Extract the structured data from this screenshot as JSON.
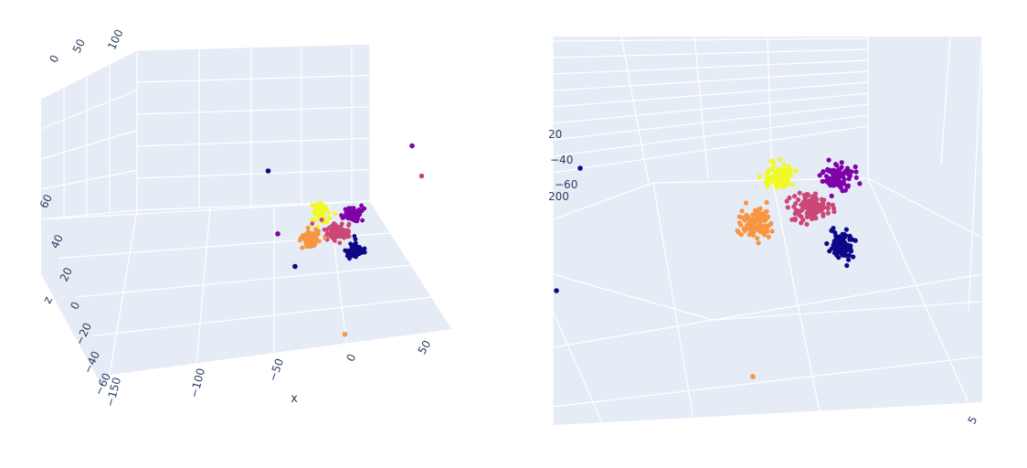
{
  "chart_data": [
    {
      "type": "scatter",
      "panel": "left",
      "axis_titles": {
        "x": "x",
        "z": "z"
      },
      "x_ticks": [
        "−150",
        "−100",
        "−50",
        "0",
        "50"
      ],
      "z_ticks": [
        "−60",
        "−40",
        "−20",
        "0",
        "20",
        "40",
        "60"
      ],
      "y_ticks": [
        "0",
        "50",
        "100"
      ],
      "colors": {
        "navy": "#0d0887",
        "purple": "#7e03a8",
        "magenta": "#cc4778",
        "orange": "#f89540",
        "yellow": "#f0f921",
        "pane": "#e5ecf6",
        "grid": "#ffffff",
        "text": "#2a3f5f"
      },
      "clusters": [
        {
          "color": "yellow",
          "n": 90,
          "x": 0.0,
          "z": 37.0
        },
        {
          "color": "purple",
          "n": 90,
          "x": 30.0,
          "z": 37.0
        },
        {
          "color": "magenta",
          "n": 100,
          "x": 16.0,
          "z": 27.0
        },
        {
          "color": "orange",
          "n": 90,
          "x": -2.0,
          "z": 25.0
        },
        {
          "color": "navy",
          "n": 80,
          "x": 36.0,
          "z": 15.0
        }
      ],
      "outliers": [
        {
          "color": "purple",
          "x": 60.0,
          "z": 70.0
        },
        {
          "color": "magenta",
          "x": 70.0,
          "z": 58.0
        },
        {
          "color": "navy",
          "x": -90.0,
          "z": 60.0
        },
        {
          "color": "purple",
          "x": -80.0,
          "z": 35.0
        },
        {
          "color": "navy",
          "x": -62.0,
          "z": 22.0
        },
        {
          "color": "orange",
          "x": -10.0,
          "z": -5.0
        }
      ]
    },
    {
      "type": "scatter",
      "panel": "right",
      "z_ticks": [
        "20",
        "−40",
        "−60",
        "200"
      ],
      "corner_tick": "5",
      "clusters": [
        {
          "color": "yellow",
          "n": 90
        },
        {
          "color": "purple",
          "n": 90
        },
        {
          "color": "magenta",
          "n": 110
        },
        {
          "color": "orange",
          "n": 100
        },
        {
          "color": "navy",
          "n": 80
        }
      ],
      "outliers": [
        {
          "color": "navy"
        },
        {
          "color": "navy"
        },
        {
          "color": "orange"
        }
      ]
    }
  ]
}
